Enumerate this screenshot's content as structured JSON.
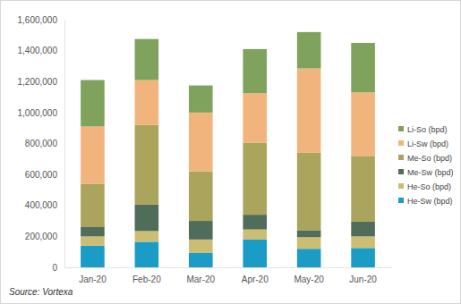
{
  "chart_data": {
    "type": "bar",
    "stacked": true,
    "legend": "right",
    "grid": false,
    "annotations": [
      "Source: Vortexa"
    ],
    "categories": [
      "Jan-20",
      "Feb-20",
      "Mar-20",
      "Apr-20",
      "May-20",
      "Jun-20"
    ],
    "series": [
      {
        "name": "He-Sw (bpd)",
        "color": "#1b9cc6",
        "values": [
          140000,
          165000,
          95000,
          180000,
          120000,
          125000
        ]
      },
      {
        "name": "He-So (bpd)",
        "color": "#cbbd72",
        "values": [
          60000,
          70000,
          85000,
          65000,
          75000,
          75000
        ]
      },
      {
        "name": "Me-Sw (bpd)",
        "color": "#506c5a",
        "values": [
          60000,
          170000,
          120000,
          95000,
          45000,
          95000
        ]
      },
      {
        "name": "Me-So (bpd)",
        "color": "#aaa45c",
        "values": [
          280000,
          515000,
          320000,
          465000,
          500000,
          425000
        ]
      },
      {
        "name": "Li-Sw (bpd)",
        "color": "#f1b47c",
        "values": [
          370000,
          290000,
          380000,
          320000,
          545000,
          410000
        ]
      },
      {
        "name": "Li-So (bpd)",
        "color": "#7fa25c",
        "values": [
          300000,
          265000,
          175000,
          285000,
          235000,
          320000
        ]
      }
    ],
    "ylim": [
      0,
      1600000
    ],
    "yticks": [
      0,
      {
        "value": 200000,
        "label": "200,000"
      },
      {
        "value": 400000,
        "label": "400,000"
      },
      {
        "value": 600000,
        "label": "600,000"
      },
      {
        "value": 800000,
        "label": "800,000"
      },
      {
        "value": 1000000,
        "label": "1,000,000"
      },
      {
        "value": 1200000,
        "label": "1,200,000"
      },
      {
        "value": 1400000,
        "label": "1,400,000"
      },
      {
        "value": 1600000,
        "label": "1,600,000"
      }
    ]
  }
}
